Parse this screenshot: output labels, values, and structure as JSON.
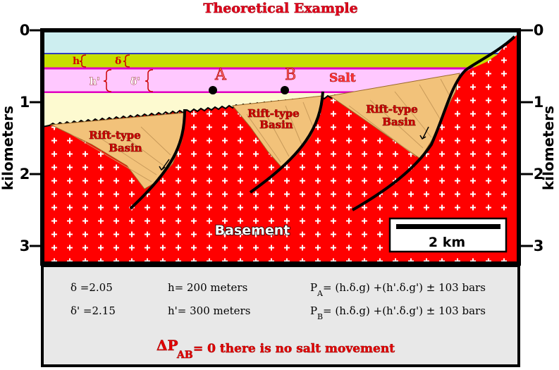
{
  "title": "Theoretical Example",
  "axis": {
    "label": "kilometers",
    "ticks": [
      "0",
      "1",
      "2",
      "3"
    ]
  },
  "layers": {
    "h": "h",
    "delta": "δ",
    "h_prime": "h'",
    "delta_prime": "δ'",
    "salt": "Salt",
    "point_a": "A",
    "point_b": "B"
  },
  "basins": {
    "label_line1": "Rift-type",
    "label_line2": "Basin"
  },
  "basement": "Basement",
  "scale_bar": "2 km",
  "info": {
    "delta_val": "δ =2.05",
    "delta_prime_val": "δ' =2.15",
    "h_val": "h= 200 meters",
    "h_prime_val": "h'= 300 meters",
    "pa_main": "P",
    "pa_sub": "A",
    "pa_formula": "= (h.δ.g) +(h'.δ.g') ± 103 bars",
    "pb_main": "P",
    "pb_sub": "B",
    "pb_formula": "= (h.δ.g) +(h'.δ.g') ± 103 bars",
    "conclusion_main": "ΔP",
    "conclusion_sub": "AB",
    "conclusion_text": "= 0  there is no salt movement"
  },
  "colors": {
    "sky": "#cdeef0",
    "green_layer": "#c7e000",
    "salt": "#ffc8ff",
    "salt_border": "#e000c0",
    "sediment": "#fdfad0",
    "basement": "#ff0000",
    "basin_fill": "#f2c27a",
    "info_panel": "#e8e8e8"
  }
}
